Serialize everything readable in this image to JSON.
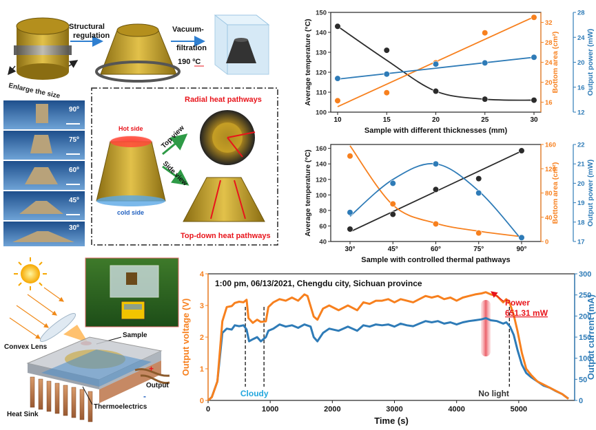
{
  "colors": {
    "black": "#2b2b2b",
    "orange": "#f7801e",
    "blue": "#2e7bb7",
    "red": "#e8141b",
    "green": "#2e9a46",
    "cyan": "#22a6dd",
    "gold": "#c9a227",
    "photo_blue": "#2f6fb0"
  },
  "schematics": {
    "top_row": {
      "structural_regulation": [
        "Structural",
        "regulation"
      ],
      "vacuum_filtration": [
        "Vacuum-",
        "filtration"
      ],
      "temperature": "190 ºC",
      "enlarge": "Enlarge the size"
    },
    "photo_angles": [
      "90º",
      "75º",
      "60º",
      "45º",
      "30º"
    ],
    "pathways": {
      "radial": "Radial heat pathways",
      "hot_side": "Hot side",
      "cold_side": "cold side",
      "top_view": "Top view",
      "side_view": "Side view",
      "top_down": "Top-down heat pathways"
    },
    "device": {
      "convex_lens": "Convex Lens",
      "sample": "Sample",
      "output": "Output",
      "heat_sink": "Heat Sink",
      "thermoelectrics": "Thermoelectrics",
      "plus": "+",
      "minus": "-"
    }
  },
  "chart_data": [
    {
      "type": "scatter",
      "xlabel": "Sample with different thicknesses (mm)",
      "x_ticks": [
        "10",
        "15",
        "20",
        "25",
        "30"
      ],
      "axes": [
        {
          "label": "Average temperature (°C)",
          "lim": [
            100,
            150
          ],
          "ticks": [
            "100",
            "110",
            "120",
            "130",
            "140",
            "150"
          ],
          "color": "black"
        },
        {
          "label": "Bottom area (cm²)",
          "lim": [
            14,
            34
          ],
          "ticks": [
            "16",
            "20",
            "24",
            "28",
            "32"
          ],
          "color": "orange"
        },
        {
          "label": "Output power (mW)",
          "lim": [
            12,
            28
          ],
          "ticks": [
            "12",
            "16",
            "20",
            "24",
            "28"
          ],
          "color": "blue"
        }
      ],
      "series": [
        {
          "axis": 0,
          "x": [
            10,
            15,
            20,
            25,
            30
          ],
          "y": [
            143,
            131,
            110.5,
            106.5,
            106
          ],
          "fit": "curve",
          "fit_y": [
            143,
            126,
            110.5,
            106.5,
            106
          ]
        },
        {
          "axis": 1,
          "x": [
            10,
            15,
            20,
            25,
            30
          ],
          "y": [
            16.3,
            17.9,
            23.9,
            29.9,
            33.0
          ],
          "fit": "line",
          "fit_y": [
            15.1,
            19.6,
            24.1,
            28.6,
            33.1
          ]
        },
        {
          "axis": 2,
          "x": [
            10,
            15,
            20,
            25,
            30
          ],
          "y": [
            17.4,
            18.1,
            19.7,
            19.9,
            20.8
          ],
          "fit": "line",
          "fit_y": [
            17.3,
            18.2,
            19.1,
            20.0,
            20.8
          ]
        }
      ]
    },
    {
      "type": "scatter",
      "xlabel": "Sample with controlled thermal pathways",
      "x_ticks": [
        "30°",
        "45°",
        "60°",
        "75°",
        "90°"
      ],
      "axes": [
        {
          "label": "Average temperature (°C)",
          "lim": [
            40,
            165
          ],
          "ticks": [
            "40",
            "60",
            "80",
            "100",
            "120",
            "140",
            "160"
          ],
          "color": "black"
        },
        {
          "label": "Bottom area (cm²)",
          "lim": [
            0,
            160
          ],
          "ticks": [
            "0",
            "40",
            "80",
            "120",
            "160"
          ],
          "color": "orange"
        },
        {
          "label": "Output power (mW)",
          "lim": [
            17,
            22
          ],
          "ticks": [
            "17",
            "18",
            "19",
            "20",
            "21",
            "22"
          ],
          "color": "blue"
        }
      ],
      "series": [
        {
          "axis": 0,
          "x": [
            30,
            45,
            60,
            75,
            90
          ],
          "y": [
            56,
            75,
            107,
            121,
            157
          ],
          "fit": "line",
          "fit_y": [
            52.5,
            78.5,
            104.5,
            130.5,
            156.5
          ]
        },
        {
          "axis": 1,
          "x": [
            30,
            45,
            60,
            75,
            90
          ],
          "y": [
            141,
            62,
            29,
            14,
            7
          ],
          "fit": "curve",
          "fit_y": [
            158,
            60,
            30,
            17,
            8
          ]
        },
        {
          "axis": 2,
          "x": [
            30,
            45,
            60,
            75,
            90
          ],
          "y": [
            18.5,
            20.0,
            21.0,
            19.5,
            17.2
          ],
          "fit": "curve",
          "fit_y": [
            18.3,
            20.2,
            21.0,
            19.6,
            17.1
          ]
        }
      ]
    },
    {
      "type": "line",
      "annotation": "1:00 pm, 06/13/2021, Chengdu city, Sichuan province",
      "xlabel": "Time (s)",
      "xlim": [
        0,
        5900
      ],
      "x_ticks": [
        "0",
        "1000",
        "2000",
        "3000",
        "4000",
        "5000"
      ],
      "axes": [
        {
          "label": "Output voltage (V)",
          "lim": [
            0,
            4
          ],
          "ticks": [
            "0",
            "1",
            "2",
            "3",
            "4"
          ],
          "color": "orange"
        },
        {
          "label": "Output current (mA)",
          "lim": [
            0,
            300
          ],
          "ticks": [
            "0",
            "50",
            "100",
            "150",
            "200",
            "250",
            "300"
          ],
          "color": "blue"
        }
      ],
      "labels": {
        "cloudy": "Cloudy",
        "no_light": "No light",
        "power": "Power",
        "power_value": "651.31 mW"
      },
      "markers_x": [
        600,
        900,
        4850
      ],
      "highlight_x": 4470,
      "series": [
        {
          "axis": 0,
          "color": "orange",
          "points": [
            [
              0,
              0
            ],
            [
              60,
              0.1
            ],
            [
              150,
              0.6
            ],
            [
              230,
              2.5
            ],
            [
              300,
              2.95
            ],
            [
              380,
              2.98
            ],
            [
              430,
              3.08
            ],
            [
              500,
              3.12
            ],
            [
              570,
              3.1
            ],
            [
              620,
              3.18
            ],
            [
              650,
              2.6
            ],
            [
              720,
              2.45
            ],
            [
              790,
              2.55
            ],
            [
              850,
              2.48
            ],
            [
              930,
              2.5
            ],
            [
              970,
              2.95
            ],
            [
              1050,
              3.1
            ],
            [
              1150,
              3.2
            ],
            [
              1250,
              3.15
            ],
            [
              1350,
              3.25
            ],
            [
              1450,
              3.15
            ],
            [
              1550,
              3.35
            ],
            [
              1600,
              3.3
            ],
            [
              1700,
              2.65
            ],
            [
              1760,
              2.55
            ],
            [
              1850,
              2.9
            ],
            [
              1950,
              3.0
            ],
            [
              2100,
              2.85
            ],
            [
              2250,
              3.0
            ],
            [
              2400,
              2.85
            ],
            [
              2500,
              3.1
            ],
            [
              2600,
              3.05
            ],
            [
              2700,
              3.15
            ],
            [
              2800,
              3.15
            ],
            [
              2900,
              3.2
            ],
            [
              3000,
              3.1
            ],
            [
              3100,
              3.2
            ],
            [
              3200,
              3.15
            ],
            [
              3300,
              3.1
            ],
            [
              3400,
              3.2
            ],
            [
              3500,
              3.3
            ],
            [
              3600,
              3.25
            ],
            [
              3700,
              3.3
            ],
            [
              3800,
              3.2
            ],
            [
              3900,
              3.25
            ],
            [
              4000,
              3.15
            ],
            [
              4100,
              3.25
            ],
            [
              4200,
              3.3
            ],
            [
              4300,
              3.35
            ],
            [
              4400,
              3.38
            ],
            [
              4470,
              3.42
            ],
            [
              4550,
              3.35
            ],
            [
              4650,
              3.3
            ],
            [
              4750,
              3.1
            ],
            [
              4800,
              3.2
            ],
            [
              4860,
              3.05
            ],
            [
              4920,
              2.7
            ],
            [
              4980,
              2.2
            ],
            [
              5050,
              1.5
            ],
            [
              5120,
              1.0
            ],
            [
              5200,
              0.8
            ],
            [
              5300,
              0.6
            ],
            [
              5400,
              0.5
            ],
            [
              5500,
              0.4
            ],
            [
              5600,
              0.3
            ],
            [
              5700,
              0.2
            ],
            [
              5800,
              0.05
            ]
          ]
        },
        {
          "axis": 1,
          "color": "blue",
          "points": [
            [
              0,
              0
            ],
            [
              60,
              8
            ],
            [
              150,
              45
            ],
            [
              230,
              160
            ],
            [
              300,
              170
            ],
            [
              380,
              168
            ],
            [
              430,
              178
            ],
            [
              500,
              176
            ],
            [
              570,
              178
            ],
            [
              620,
              168
            ],
            [
              660,
              140
            ],
            [
              720,
              145
            ],
            [
              790,
              150
            ],
            [
              850,
              140
            ],
            [
              930,
              150
            ],
            [
              970,
              165
            ],
            [
              1050,
              170
            ],
            [
              1150,
              180
            ],
            [
              1250,
              175
            ],
            [
              1350,
              178
            ],
            [
              1450,
              172
            ],
            [
              1550,
              180
            ],
            [
              1650,
              175
            ],
            [
              1700,
              150
            ],
            [
              1760,
              140
            ],
            [
              1850,
              160
            ],
            [
              1950,
              170
            ],
            [
              2100,
              165
            ],
            [
              2250,
              175
            ],
            [
              2400,
              165
            ],
            [
              2500,
              178
            ],
            [
              2600,
              175
            ],
            [
              2700,
              180
            ],
            [
              2800,
              178
            ],
            [
              2900,
              180
            ],
            [
              3000,
              175
            ],
            [
              3100,
              182
            ],
            [
              3200,
              178
            ],
            [
              3300,
              176
            ],
            [
              3400,
              182
            ],
            [
              3500,
              188
            ],
            [
              3600,
              185
            ],
            [
              3700,
              188
            ],
            [
              3800,
              182
            ],
            [
              3900,
              185
            ],
            [
              4000,
              180
            ],
            [
              4100,
              185
            ],
            [
              4200,
              188
            ],
            [
              4300,
              190
            ],
            [
              4400,
              192
            ],
            [
              4470,
              195
            ],
            [
              4550,
              190
            ],
            [
              4650,
              188
            ],
            [
              4750,
              182
            ],
            [
              4800,
              185
            ],
            [
              4860,
              175
            ],
            [
              4920,
              155
            ],
            [
              4980,
              120
            ],
            [
              5050,
              85
            ],
            [
              5120,
              65
            ],
            [
              5200,
              55
            ],
            [
              5300,
              45
            ],
            [
              5400,
              35
            ],
            [
              5500,
              30
            ],
            [
              5600,
              22
            ],
            [
              5700,
              15
            ],
            [
              5800,
              4
            ]
          ]
        }
      ]
    }
  ]
}
